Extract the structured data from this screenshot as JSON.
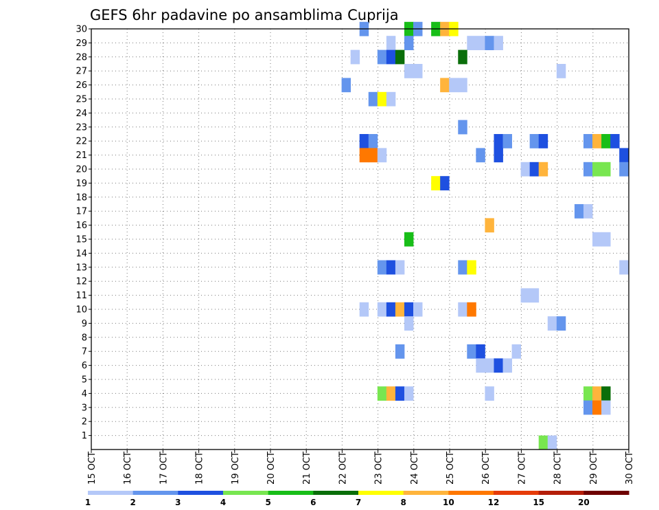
{
  "chart_data": {
    "type": "heatmap",
    "title": "GEFS 6hr padavine po ansamblima Cuprija",
    "xlabel": "",
    "ylabel": "",
    "x_tick_labels": [
      "15 OCT",
      "16 OCT",
      "17 OCT",
      "18 OCT",
      "19 OCT",
      "20 OCT",
      "21 OCT",
      "22 OCT",
      "23 OCT",
      "24 OCT",
      "25 OCT",
      "26 OCT",
      "27 OCT",
      "28 OCT",
      "29 OCT",
      "30 OCT"
    ],
    "y_tick_labels": [
      "1",
      "2",
      "3",
      "4",
      "5",
      "6",
      "7",
      "8",
      "9",
      "10",
      "11",
      "12",
      "13",
      "14",
      "15",
      "16",
      "17",
      "18",
      "19",
      "20",
      "21",
      "22",
      "23",
      "24",
      "25",
      "26",
      "27",
      "28",
      "29",
      "30"
    ],
    "xlim_days": [
      15,
      30
    ],
    "ylim": [
      0,
      30
    ],
    "grid": true,
    "colorbar": {
      "position": "bottom",
      "labels": [
        "1",
        "2",
        "3",
        "4",
        "5",
        "6",
        "7",
        "8",
        "10",
        "12",
        "15",
        "20"
      ],
      "colors": [
        "#b4c8f8",
        "#6495ed",
        "#1e50e0",
        "#78e650",
        "#18be18",
        "#0a6e0a",
        "#ffff00",
        "#ffb43c",
        "#ff7800",
        "#e63c0a",
        "#b41e0a",
        "#6e0000"
      ]
    },
    "cells": [
      {
        "x": 22.61,
        "y": 30,
        "v": 2
      },
      {
        "x": 23.86,
        "y": 30,
        "v": 5
      },
      {
        "x": 24.11,
        "y": 30,
        "v": 2
      },
      {
        "x": 24.61,
        "y": 30,
        "v": 5
      },
      {
        "x": 24.86,
        "y": 30,
        "v": 8
      },
      {
        "x": 25.11,
        "y": 30,
        "v": 7
      },
      {
        "x": 23.36,
        "y": 29,
        "v": 1
      },
      {
        "x": 23.86,
        "y": 29,
        "v": 2
      },
      {
        "x": 25.61,
        "y": 29,
        "v": 1
      },
      {
        "x": 25.86,
        "y": 29,
        "v": 1
      },
      {
        "x": 26.11,
        "y": 29,
        "v": 2
      },
      {
        "x": 26.36,
        "y": 29,
        "v": 1
      },
      {
        "x": 22.36,
        "y": 28,
        "v": 1
      },
      {
        "x": 23.11,
        "y": 28,
        "v": 2
      },
      {
        "x": 23.36,
        "y": 28,
        "v": 3
      },
      {
        "x": 23.61,
        "y": 28,
        "v": 6
      },
      {
        "x": 25.36,
        "y": 28,
        "v": 6
      },
      {
        "x": 23.86,
        "y": 27,
        "v": 1
      },
      {
        "x": 24.11,
        "y": 27,
        "v": 1
      },
      {
        "x": 28.11,
        "y": 27,
        "v": 1
      },
      {
        "x": 22.11,
        "y": 26,
        "v": 2
      },
      {
        "x": 24.86,
        "y": 26,
        "v": 8
      },
      {
        "x": 25.11,
        "y": 26,
        "v": 1
      },
      {
        "x": 25.36,
        "y": 26,
        "v": 1
      },
      {
        "x": 22.86,
        "y": 25,
        "v": 2
      },
      {
        "x": 23.11,
        "y": 25,
        "v": 7
      },
      {
        "x": 23.36,
        "y": 25,
        "v": 1
      },
      {
        "x": 25.36,
        "y": 23,
        "v": 2
      },
      {
        "x": 22.61,
        "y": 22,
        "v": 3
      },
      {
        "x": 22.86,
        "y": 22,
        "v": 2
      },
      {
        "x": 26.36,
        "y": 22,
        "v": 3
      },
      {
        "x": 26.61,
        "y": 22,
        "v": 2
      },
      {
        "x": 27.36,
        "y": 22,
        "v": 2
      },
      {
        "x": 27.61,
        "y": 22,
        "v": 3
      },
      {
        "x": 28.86,
        "y": 22,
        "v": 2
      },
      {
        "x": 29.11,
        "y": 22,
        "v": 8
      },
      {
        "x": 29.36,
        "y": 22,
        "v": 5
      },
      {
        "x": 29.61,
        "y": 22,
        "v": 3
      },
      {
        "x": 22.61,
        "y": 21,
        "v": 10
      },
      {
        "x": 22.86,
        "y": 21,
        "v": 10
      },
      {
        "x": 23.11,
        "y": 21,
        "v": 1
      },
      {
        "x": 25.86,
        "y": 21,
        "v": 2
      },
      {
        "x": 26.36,
        "y": 21,
        "v": 3
      },
      {
        "x": 29.86,
        "y": 21,
        "v": 3
      },
      {
        "x": 27.11,
        "y": 20,
        "v": 1
      },
      {
        "x": 27.36,
        "y": 20,
        "v": 3
      },
      {
        "x": 27.61,
        "y": 20,
        "v": 8
      },
      {
        "x": 28.86,
        "y": 20,
        "v": 2
      },
      {
        "x": 29.11,
        "y": 20,
        "v": 4
      },
      {
        "x": 29.36,
        "y": 20,
        "v": 4
      },
      {
        "x": 29.86,
        "y": 20,
        "v": 2
      },
      {
        "x": 24.61,
        "y": 19,
        "v": 7
      },
      {
        "x": 24.86,
        "y": 19,
        "v": 3
      },
      {
        "x": 28.61,
        "y": 17,
        "v": 2
      },
      {
        "x": 28.86,
        "y": 17,
        "v": 1
      },
      {
        "x": 26.11,
        "y": 16,
        "v": 8
      },
      {
        "x": 23.86,
        "y": 15,
        "v": 5
      },
      {
        "x": 29.11,
        "y": 15,
        "v": 1
      },
      {
        "x": 29.36,
        "y": 15,
        "v": 1
      },
      {
        "x": 23.11,
        "y": 13,
        "v": 2
      },
      {
        "x": 23.36,
        "y": 13,
        "v": 3
      },
      {
        "x": 23.61,
        "y": 13,
        "v": 1
      },
      {
        "x": 25.36,
        "y": 13,
        "v": 2
      },
      {
        "x": 25.61,
        "y": 13,
        "v": 7
      },
      {
        "x": 29.86,
        "y": 13,
        "v": 1
      },
      {
        "x": 27.11,
        "y": 11,
        "v": 1
      },
      {
        "x": 27.36,
        "y": 11,
        "v": 1
      },
      {
        "x": 22.61,
        "y": 10,
        "v": 1
      },
      {
        "x": 23.11,
        "y": 10,
        "v": 1
      },
      {
        "x": 23.36,
        "y": 10,
        "v": 3
      },
      {
        "x": 23.61,
        "y": 10,
        "v": 8
      },
      {
        "x": 23.86,
        "y": 10,
        "v": 3
      },
      {
        "x": 24.11,
        "y": 10,
        "v": 1
      },
      {
        "x": 25.36,
        "y": 10,
        "v": 1
      },
      {
        "x": 25.61,
        "y": 10,
        "v": 10
      },
      {
        "x": 23.86,
        "y": 9,
        "v": 1
      },
      {
        "x": 27.86,
        "y": 9,
        "v": 1
      },
      {
        "x": 28.11,
        "y": 9,
        "v": 2
      },
      {
        "x": 23.61,
        "y": 7,
        "v": 2
      },
      {
        "x": 25.61,
        "y": 7,
        "v": 2
      },
      {
        "x": 25.86,
        "y": 7,
        "v": 3
      },
      {
        "x": 26.86,
        "y": 7,
        "v": 1
      },
      {
        "x": 25.86,
        "y": 6,
        "v": 1
      },
      {
        "x": 26.11,
        "y": 6,
        "v": 1
      },
      {
        "x": 26.36,
        "y": 6,
        "v": 3
      },
      {
        "x": 26.61,
        "y": 6,
        "v": 1
      },
      {
        "x": 23.11,
        "y": 4,
        "v": 4
      },
      {
        "x": 23.36,
        "y": 4,
        "v": 8
      },
      {
        "x": 23.61,
        "y": 4,
        "v": 3
      },
      {
        "x": 23.86,
        "y": 4,
        "v": 1
      },
      {
        "x": 26.11,
        "y": 4,
        "v": 1
      },
      {
        "x": 28.86,
        "y": 4,
        "v": 4
      },
      {
        "x": 29.11,
        "y": 4,
        "v": 8
      },
      {
        "x": 29.36,
        "y": 4,
        "v": 6
      },
      {
        "x": 28.86,
        "y": 3,
        "v": 2
      },
      {
        "x": 29.11,
        "y": 3,
        "v": 10
      },
      {
        "x": 29.36,
        "y": 3,
        "v": 1
      },
      {
        "x": 27.61,
        "y": 0.5,
        "v": 4
      },
      {
        "x": 27.86,
        "y": 0.5,
        "v": 1
      }
    ]
  }
}
